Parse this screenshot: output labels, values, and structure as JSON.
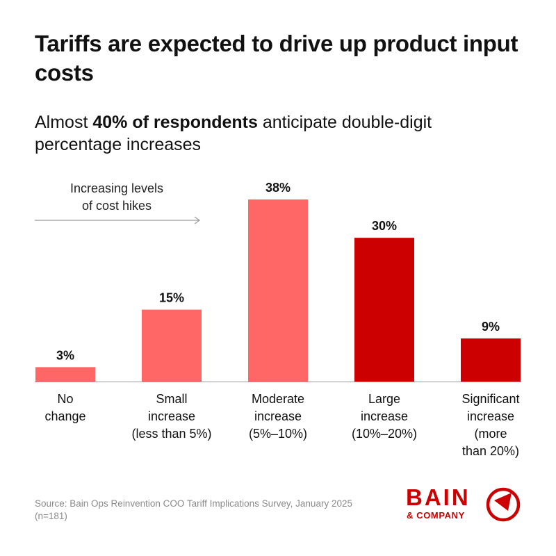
{
  "header": {
    "title": "Tariffs are expected to drive up product input costs",
    "subtitle_prefix": "Almost ",
    "subtitle_bold": "40% of respondents",
    "subtitle_suffix": " anticipate double-digit percentage increases"
  },
  "chart_data": {
    "type": "bar",
    "title": "Tariffs are expected to drive up product input costs",
    "categories": [
      "No change",
      "Small increase (less than 5%)",
      "Moderate increase (5%–10%)",
      "Large increase (10%–20%)",
      "Significant increase (more than 20%)"
    ],
    "category_label_lines": [
      [
        "No",
        "change"
      ],
      [
        "Small",
        "increase",
        "(less than 5%)"
      ],
      [
        "Moderate",
        "increase",
        "(5%–10%)"
      ],
      [
        "Large",
        "increase",
        "(10%–20%)"
      ],
      [
        "Significant",
        "increase",
        "(more",
        "than 20%)"
      ]
    ],
    "values": [
      3,
      15,
      38,
      30,
      9
    ],
    "value_labels": [
      "3%",
      "15%",
      "38%",
      "30%",
      "9%"
    ],
    "bar_colors": [
      "#ff6666",
      "#ff6666",
      "#ff6666",
      "#cc0000",
      "#cc0000"
    ],
    "ylim": [
      0,
      38
    ],
    "xlabel": "",
    "ylabel": "",
    "grid": false,
    "annotation_lines": [
      "Increasing levels",
      "of cost hikes"
    ]
  },
  "footer": {
    "source": "Source: Bain Ops Reinvention COO Tariff Implications Survey, January 2025 (n=181)"
  },
  "logo": {
    "name": "BAIN",
    "sub": "& COMPANY",
    "color": "#cc0000"
  }
}
